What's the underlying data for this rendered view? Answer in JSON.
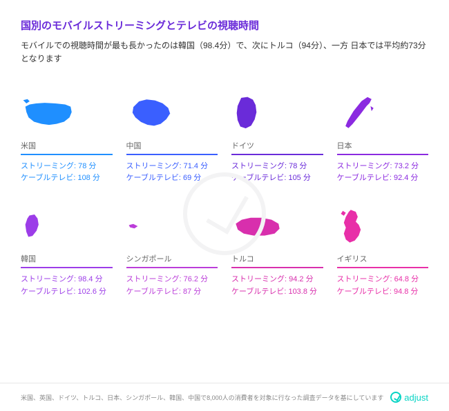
{
  "title_color": "#6a2bd9",
  "subtitle_color": "#333333",
  "title": "国別のモバイルストリーミングとテレビの視聴時間",
  "subtitle": "モバイルでの視聴時間が最も長かったのは韓国（98.4分）で、次にトルコ（94分）、一方 日本では平均約73分となります",
  "streaming_label": "ストリーミング",
  "cable_label": "ケーブルテレビ",
  "unit": "分",
  "countries": [
    {
      "name": "米国",
      "streaming": "78",
      "cable": "108",
      "color": "#1f8fff",
      "text_color": "#1f8fff"
    },
    {
      "name": "中国",
      "streaming": "71.4",
      "cable": "69",
      "color": "#3a5fff",
      "text_color": "#3a5fff"
    },
    {
      "name": "ドイツ",
      "streaming": "78",
      "cable": "105",
      "color": "#6a2bd9",
      "text_color": "#6a2bd9"
    },
    {
      "name": "日本",
      "streaming": "73.2",
      "cable": "92.4",
      "color": "#8b2ae0",
      "text_color": "#8b2ae0"
    },
    {
      "name": "韓国",
      "streaming": "98.4",
      "cable": "102.6",
      "color": "#9c3de8",
      "text_color": "#9c3de8"
    },
    {
      "name": "シンガポール",
      "streaming": "76.2",
      "cable": "87",
      "color": "#bb3dd9",
      "text_color": "#bb3dd9"
    },
    {
      "name": "トルコ",
      "streaming": "94.2",
      "cable": "103.8",
      "color": "#d82fad",
      "text_color": "#d82fad"
    },
    {
      "name": "イギリス",
      "streaming": "64.8",
      "cable": "94.8",
      "color": "#e82fa8",
      "text_color": "#e82fa8"
    }
  ],
  "footnote": "米国、英国、ドイツ、トルコ、日本、シンガポール、韓国、中国で8,000人の消費者を対象に行なった調査データを基にしています",
  "logo_text": "adjust",
  "logo_color": "#08d4c4"
}
